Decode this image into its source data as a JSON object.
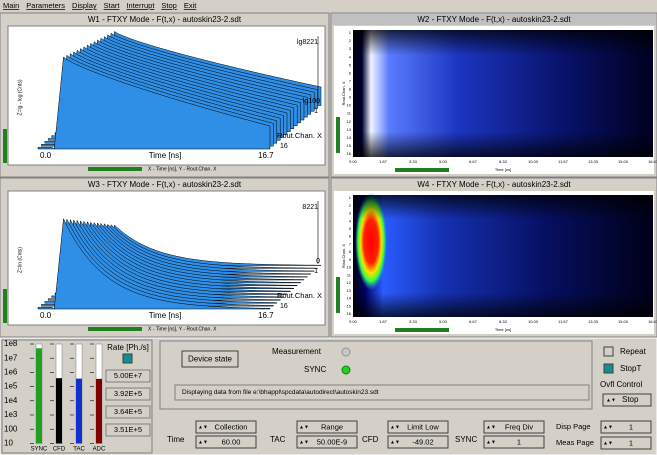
{
  "menu": [
    "Main",
    "Parameters",
    "Display",
    "Start",
    "Interrupt",
    "Stop",
    "Exit"
  ],
  "windows": [
    {
      "title": "W1 - FTXY Mode - F(t,x) - autoskin23-2.sdt",
      "z_label": "Z=lg - log (Cnts)",
      "z_max": "lg8221",
      "z_min": "lg100",
      "chan_label": "Rout.Chan. X",
      "chan_first": "1",
      "chan_last": "16",
      "time_start": "0.0",
      "time_label": "Time [ns]",
      "time_end": "16.7",
      "caption": "X - Time [ns], Y - Rout.Chan. X"
    },
    {
      "title": "W2 - FTXY Mode - F(t,x) - autoskin23-2.sdt",
      "y_label": "Rout.Chan. X",
      "y_ticks": [
        "1",
        "2",
        "3",
        "4",
        "5",
        "6",
        "7",
        "8",
        "9",
        "10",
        "11",
        "12",
        "13",
        "14",
        "15",
        "16"
      ],
      "x_ticks": [
        "0.00",
        "1.67",
        "3.33",
        "5.00",
        "6.67",
        "8.33",
        "10.00",
        "11.67",
        "13.33",
        "15.00",
        "16.67"
      ],
      "x_label": "Time [ns]"
    },
    {
      "title": "W3 - FTXY Mode - F(t,x) - autoskin23-2.sdt",
      "z_label": "Z=lin (Cnts)",
      "z_max": "8221",
      "z_min": "0",
      "chan_label": "Rout.Chan. X",
      "chan_first": "1",
      "chan_last": "16",
      "time_start": "0.0",
      "time_label": "Time [ns]",
      "time_end": "16.7",
      "caption": "X - Time [ns], Y - Rout.Chan. X"
    },
    {
      "title": "W4 - FTXY Mode - F(t,x) - autoskin23-2.sdt",
      "y_label": "Rout.Chan. X",
      "y_ticks": [
        "1",
        "2",
        "3",
        "4",
        "5",
        "6",
        "7",
        "8",
        "9",
        "10",
        "11",
        "12",
        "13",
        "14",
        "15",
        "16"
      ],
      "x_ticks": [
        "0.00",
        "1.67",
        "3.33",
        "5.00",
        "6.67",
        "8.33",
        "10.00",
        "11.67",
        "13.33",
        "15.00",
        "16.67"
      ],
      "x_label": "Time [ns]"
    }
  ],
  "rate_meter": {
    "scale": [
      "1e8",
      "1e7",
      "1e6",
      "1e5",
      "1e4",
      "1e3",
      "100",
      "10"
    ],
    "channels": [
      "SYNC",
      "CFD",
      "TAC",
      "ADC"
    ],
    "title": "Rate [Ph./s]",
    "rates": [
      "5.00E+7",
      "3.92E+5",
      "3.64E+5",
      "3.51E+5"
    ]
  },
  "status": {
    "device_state": "Device state",
    "measurement": "Measurement",
    "sync": "SYNC",
    "file_info": "Displaying data from file e:\\bhappl\\spcdata\\autodirect\\autoskin23.sdt",
    "repeat": "Repeat",
    "stopt": "StopT",
    "ovfl_control": "Ovfl Control",
    "ovfl_value": "Stop"
  },
  "params": [
    {
      "label": "Time",
      "name": "Collection",
      "value": "60.00"
    },
    {
      "label": "TAC",
      "name": "Range",
      "value": "50.00E-9"
    },
    {
      "label": "CFD",
      "name": "Limit Low",
      "value": "-49.02"
    },
    {
      "label": "SYNC",
      "name": "Freq Div",
      "value": "1"
    }
  ],
  "pages": [
    {
      "label": "Disp Page",
      "value": "1"
    },
    {
      "label": "Meas Page",
      "value": "1"
    }
  ]
}
